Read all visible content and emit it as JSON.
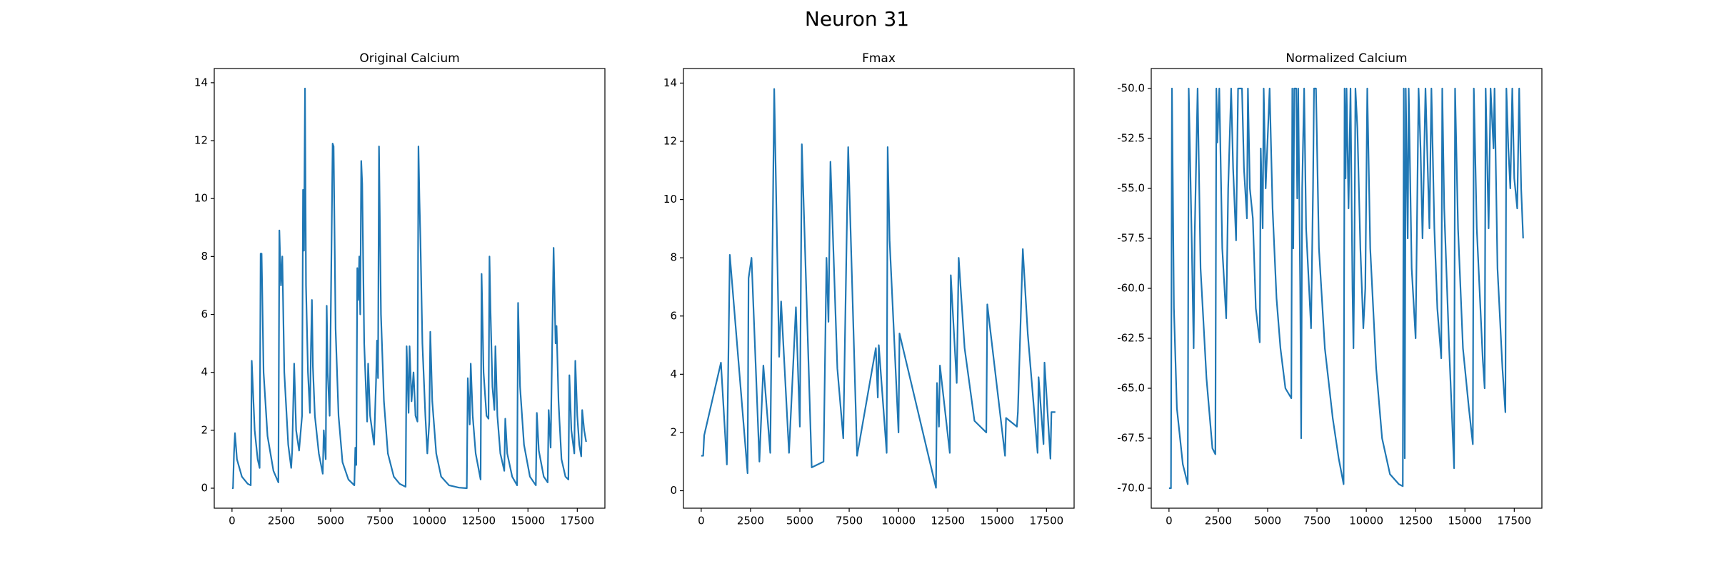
{
  "title": "Neuron 31",
  "chart_data": [
    {
      "type": "line",
      "title": "Original Calcium",
      "color": "#1f77b4",
      "xlim": [
        -900,
        18900
      ],
      "xticks": [
        0,
        2500,
        5000,
        7500,
        10000,
        12500,
        15000,
        17500
      ],
      "ylim": [
        -0.69,
        14.49
      ],
      "yticks": [
        0,
        2,
        4,
        6,
        8,
        10,
        12,
        14
      ],
      "x": [
        0,
        50,
        100,
        150,
        250,
        500,
        800,
        950,
        1000,
        1150,
        1300,
        1400,
        1450,
        1500,
        1600,
        1800,
        2100,
        2350,
        2400,
        2480,
        2550,
        2650,
        2850,
        3000,
        3050,
        3150,
        3250,
        3400,
        3550,
        3600,
        3650,
        3700,
        3750,
        3850,
        3950,
        4000,
        4050,
        4100,
        4200,
        4400,
        4600,
        4650,
        4750,
        4800,
        4850,
        4950,
        5100,
        5150,
        5250,
        5400,
        5600,
        5900,
        6200,
        6250,
        6300,
        6350,
        6400,
        6450,
        6500,
        6550,
        6600,
        6700,
        6850,
        6900,
        7000,
        7200,
        7300,
        7350,
        7400,
        7450,
        7550,
        7700,
        7900,
        8200,
        8500,
        8800,
        8850,
        8950,
        9000,
        9100,
        9200,
        9300,
        9400,
        9450,
        9500,
        9550,
        9650,
        9800,
        9900,
        10000,
        10050,
        10150,
        10350,
        10600,
        11000,
        11500,
        11900,
        11950,
        12050,
        12100,
        12200,
        12350,
        12600,
        12650,
        12750,
        12900,
        13000,
        13050,
        13100,
        13200,
        13300,
        13350,
        13450,
        13600,
        13800,
        13850,
        13950,
        14200,
        14450,
        14500,
        14600,
        14800,
        15100,
        15400,
        15450,
        15550,
        15800,
        16000,
        16050,
        16150,
        16300,
        16400,
        16450,
        16550,
        16600,
        16700,
        16900,
        17050,
        17100,
        17200,
        17350,
        17400,
        17500,
        17600,
        17700,
        17750,
        17850,
        17950
      ],
      "values": [
        0,
        0,
        1.2,
        1.9,
        1.0,
        0.4,
        0.15,
        0.1,
        4.4,
        2.0,
        1.0,
        0.7,
        8.1,
        8.1,
        4.0,
        1.8,
        0.6,
        0.2,
        8.9,
        7.0,
        8.0,
        4.0,
        1.5,
        0.7,
        1.3,
        4.3,
        2.0,
        1.3,
        2.5,
        10.3,
        8.2,
        13.8,
        7.0,
        4.0,
        2.6,
        4.8,
        6.5,
        4.2,
        2.5,
        1.2,
        0.5,
        2.0,
        1.0,
        6.3,
        4.0,
        2.5,
        11.9,
        11.8,
        5.5,
        2.5,
        0.9,
        0.3,
        0.1,
        1.4,
        0.8,
        7.6,
        6.5,
        8.0,
        6.0,
        11.3,
        10.5,
        5.0,
        2.3,
        4.3,
        2.5,
        1.5,
        3.7,
        5.1,
        3.8,
        11.8,
        6.0,
        3.0,
        1.2,
        0.4,
        0.15,
        0.05,
        4.9,
        2.6,
        4.9,
        3.0,
        4.0,
        2.5,
        2.3,
        11.8,
        10.0,
        8.6,
        5.0,
        2.5,
        1.2,
        2.3,
        5.4,
        3.0,
        1.2,
        0.4,
        0.1,
        0.02,
        0,
        3.8,
        2.2,
        4.3,
        2.5,
        1.2,
        0.3,
        7.4,
        4.0,
        2.5,
        2.4,
        8.0,
        6.2,
        3.5,
        2.7,
        4.9,
        2.5,
        1.2,
        0.6,
        2.4,
        1.2,
        0.4,
        0.1,
        6.4,
        3.5,
        1.5,
        0.4,
        0.1,
        2.6,
        1.3,
        0.4,
        0.2,
        2.7,
        1.4,
        8.3,
        5.0,
        5.6,
        3.0,
        2.3,
        1.0,
        0.4,
        0.3,
        3.9,
        2.0,
        1.2,
        4.4,
        2.5,
        1.5,
        1.1,
        2.7,
        2.0,
        1.6
      ]
    },
    {
      "type": "line",
      "title": "Fmax",
      "color": "#1f77b4",
      "xlim": [
        -900,
        18900
      ],
      "xticks": [
        0,
        2500,
        5000,
        7500,
        10000,
        12500,
        15000,
        17500
      ],
      "ylim": [
        -0.6,
        14.5
      ],
      "yticks": [
        0,
        2,
        4,
        6,
        8,
        10,
        12,
        14
      ],
      "x": [
        0,
        100,
        150,
        1000,
        1300,
        1450,
        2350,
        2400,
        2550,
        2950,
        3150,
        3500,
        3700,
        3950,
        4050,
        4450,
        4800,
        5000,
        5100,
        5600,
        6200,
        6350,
        6450,
        6550,
        6900,
        7200,
        7450,
        7900,
        8850,
        8950,
        9000,
        9400,
        9450,
        9550,
        10000,
        10050,
        11900,
        11950,
        12050,
        12100,
        12600,
        12650,
        12950,
        13050,
        13350,
        13850,
        14450,
        14500,
        15400,
        15450,
        16000,
        16050,
        16300,
        16550,
        17050,
        17100,
        17350,
        17400,
        17700,
        17750,
        17950
      ],
      "values": [
        1.2,
        1.2,
        1.9,
        4.4,
        0.9,
        8.1,
        0.6,
        7.3,
        8.0,
        1.0,
        4.3,
        1.3,
        13.8,
        4.6,
        6.5,
        1.3,
        6.3,
        2.2,
        11.9,
        0.8,
        1.0,
        8.0,
        5.8,
        11.3,
        4.2,
        1.8,
        11.8,
        1.2,
        4.9,
        3.2,
        5.0,
        1.3,
        11.8,
        8.6,
        2.0,
        5.4,
        0.1,
        3.7,
        2.2,
        4.3,
        1.3,
        7.4,
        3.7,
        8.0,
        4.9,
        2.4,
        2.0,
        6.4,
        1.2,
        2.5,
        2.2,
        2.7,
        8.3,
        5.4,
        1.3,
        3.9,
        1.6,
        4.4,
        1.1,
        2.7,
        2.7
      ]
    },
    {
      "type": "line",
      "title": "Normalized Calcium",
      "color": "#1f77b4",
      "xlim": [
        -900,
        18900
      ],
      "xticks": [
        0,
        2500,
        5000,
        7500,
        10000,
        12500,
        15000,
        17500
      ],
      "ylim": [
        -71,
        -49
      ],
      "yticks": [
        {
          "value": -70,
          "label": "-70.0"
        },
        -67.5,
        {
          "value": -65,
          "label": "-65.0"
        },
        -62.5,
        {
          "value": -60,
          "label": "-60.0"
        },
        -57.5,
        {
          "value": -55,
          "label": "-55.0"
        },
        -52.5,
        {
          "value": -50,
          "label": "-50.0"
        }
      ],
      "x": [
        0,
        100,
        150,
        250,
        400,
        700,
        950,
        1000,
        1150,
        1250,
        1300,
        1450,
        1600,
        1900,
        2200,
        2350,
        2400,
        2450,
        2550,
        2700,
        2900,
        3000,
        3150,
        3250,
        3400,
        3500,
        3650,
        3700,
        3800,
        3950,
        4000,
        4100,
        4250,
        4400,
        4600,
        4650,
        4750,
        4800,
        4900,
        5100,
        5250,
        5450,
        5650,
        5900,
        6200,
        6250,
        6300,
        6350,
        6450,
        6500,
        6550,
        6650,
        6700,
        6750,
        6850,
        6950,
        7200,
        7300,
        7350,
        7450,
        7600,
        7900,
        8300,
        8600,
        8850,
        8900,
        8950,
        9000,
        9100,
        9200,
        9300,
        9350,
        9400,
        9450,
        9550,
        9700,
        9850,
        9950,
        10050,
        10200,
        10500,
        10800,
        11200,
        11650,
        11850,
        11900,
        11950,
        12000,
        12100,
        12150,
        12300,
        12500,
        12650,
        12750,
        12850,
        13000,
        13100,
        13200,
        13300,
        13450,
        13600,
        13800,
        13850,
        13950,
        14200,
        14450,
        14500,
        14650,
        14900,
        15200,
        15400,
        15450,
        15600,
        15900,
        16000,
        16050,
        16200,
        16300,
        16450,
        16500,
        16650,
        16900,
        17050,
        17100,
        17200,
        17300,
        17400,
        17500,
        17650,
        17750,
        17850,
        17950
      ],
      "values": [
        -70,
        -70,
        -50,
        -61,
        -66,
        -68.8,
        -69.8,
        -50,
        -57.5,
        -63,
        -57.5,
        -50,
        -59,
        -64.5,
        -68,
        -68.3,
        -50,
        -52.7,
        -50,
        -58,
        -61.5,
        -55,
        -50,
        -54,
        -57.6,
        -50,
        -50,
        -50,
        -54,
        -56.5,
        -50,
        -55,
        -56.5,
        -61,
        -62.7,
        -53,
        -57,
        -50,
        -55,
        -50,
        -56,
        -60.5,
        -63,
        -65,
        -65.5,
        -50,
        -58,
        -50,
        -50,
        -55.5,
        -50,
        -60,
        -67.5,
        -55,
        -50,
        -57,
        -62,
        -55,
        -50,
        -50,
        -58,
        -63,
        -66.5,
        -68.5,
        -69.8,
        -50,
        -54.5,
        -50,
        -56,
        -50,
        -60,
        -63,
        -58,
        -50,
        -52,
        -58,
        -62,
        -60,
        -50,
        -58,
        -64,
        -67.5,
        -69.3,
        -69.8,
        -69.9,
        -50,
        -68.5,
        -50,
        -57.5,
        -50,
        -59,
        -62.5,
        -50,
        -53,
        -57.5,
        -50,
        -53.5,
        -57,
        -50,
        -57,
        -61,
        -63.5,
        -50,
        -56,
        -63,
        -69,
        -50,
        -57,
        -63,
        -66,
        -67.8,
        -50,
        -57,
        -63.5,
        -65,
        -50,
        -57,
        -50,
        -53,
        -50,
        -59,
        -64,
        -66.2,
        -50,
        -53,
        -55,
        -50,
        -54.5,
        -56,
        -50,
        -55,
        -57.5
      ]
    }
  ]
}
